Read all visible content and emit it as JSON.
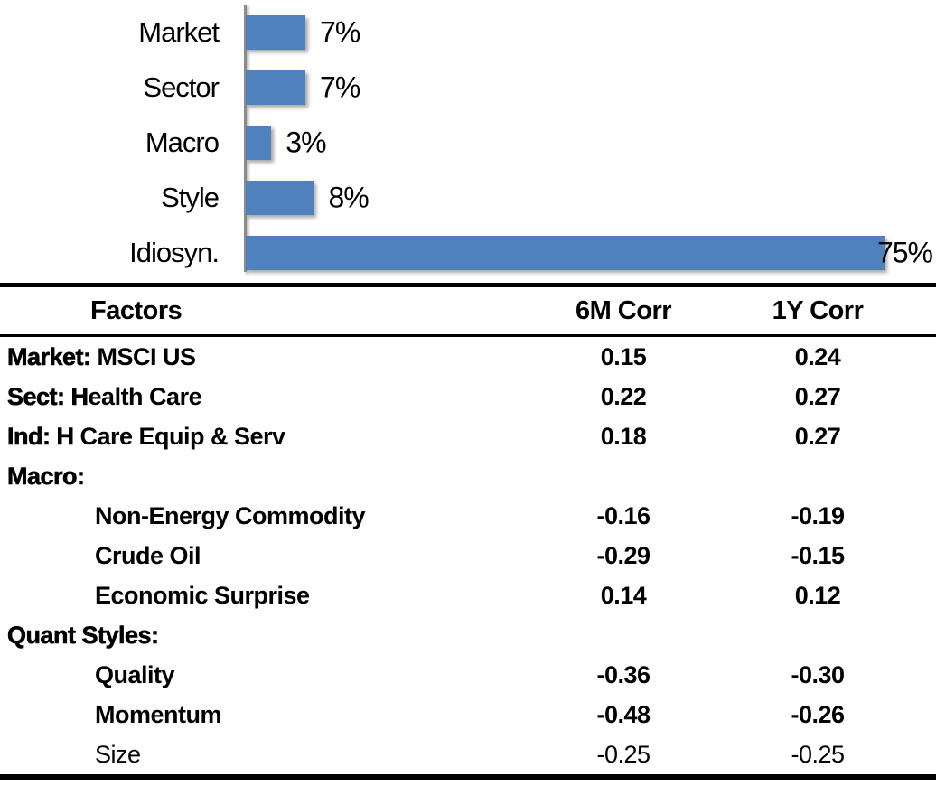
{
  "chart_data": [
    {
      "type": "bar",
      "orientation": "horizontal",
      "title": "",
      "categories": [
        "Market",
        "Sector",
        "Macro",
        "Style",
        "Idiosyn."
      ],
      "values": [
        7,
        7,
        3,
        8,
        75
      ],
      "value_labels": [
        "7%",
        "7%",
        "3%",
        "8%",
        "75%"
      ],
      "unit": "%",
      "xlim": [
        0,
        81
      ],
      "grid": false,
      "legend": false,
      "bar_color": "#4F81BD",
      "axis_color": "#8C8C8C",
      "label_color": "#000000"
    },
    {
      "type": "table",
      "columns": [
        "Factors",
        "6M Corr",
        "1Y Corr"
      ],
      "rows": [
        {
          "label": "Market: MSCI US",
          "bold_prefix": "Market:",
          "indent": false,
          "weight": "medium",
          "corr_6m": "0.15",
          "corr_1y": "0.24"
        },
        {
          "label": "Sect: Health Care",
          "bold_prefix": "Sect: H",
          "indent": false,
          "weight": "medium",
          "corr_6m": "0.22",
          "corr_1y": "0.27"
        },
        {
          "label": "Ind: H Care Equip & Serv",
          "bold_prefix": "Ind: H",
          "indent": false,
          "weight": "medium",
          "corr_6m": "0.18",
          "corr_1y": "0.27"
        },
        {
          "label": "Macro:",
          "bold_prefix": "Macro:",
          "indent": false,
          "weight": "heavy",
          "corr_6m": "",
          "corr_1y": ""
        },
        {
          "label": "Non-Energy Commodity",
          "bold_prefix": "",
          "indent": true,
          "weight": "medium",
          "corr_6m": "-0.16",
          "corr_1y": "-0.19"
        },
        {
          "label": "Crude Oil",
          "bold_prefix": "",
          "indent": true,
          "weight": "medium",
          "corr_6m": "-0.29",
          "corr_1y": "-0.15"
        },
        {
          "label": "Economic Surprise",
          "bold_prefix": "",
          "indent": true,
          "weight": "medium",
          "corr_6m": "0.14",
          "corr_1y": "0.12"
        },
        {
          "label": "Quant Styles:",
          "bold_prefix": "Quant Styles:",
          "indent": false,
          "weight": "heavy",
          "corr_6m": "",
          "corr_1y": ""
        },
        {
          "label": "Quality",
          "bold_prefix": "",
          "indent": true,
          "weight": "medium",
          "corr_6m": "-0.36",
          "corr_1y": "-0.30"
        },
        {
          "label": "Momentum",
          "bold_prefix": "",
          "indent": true,
          "weight": "medium",
          "corr_6m": "-0.48",
          "corr_1y": "-0.26"
        },
        {
          "label": "Size",
          "bold_prefix": "",
          "indent": true,
          "weight": "light",
          "corr_6m": "-0.25",
          "corr_1y": "-0.25"
        }
      ]
    }
  ]
}
